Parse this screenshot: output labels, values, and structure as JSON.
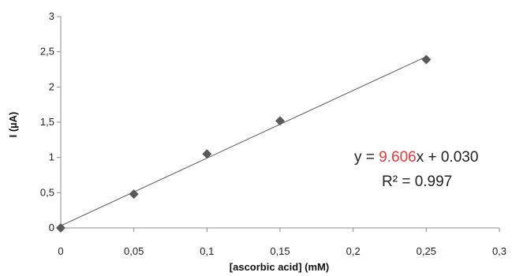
{
  "chart_data": {
    "type": "scatter",
    "xlabel": "[ascorbic acid] (mM)",
    "ylabel": "I (µA)",
    "xlim": [
      0,
      0.3
    ],
    "ylim": [
      0,
      3
    ],
    "x_ticks": [
      0,
      0.05,
      0.1,
      0.15,
      0.2,
      0.25,
      0.3
    ],
    "y_ticks": [
      0,
      0.5,
      1,
      1.5,
      2,
      2.5,
      3
    ],
    "x_tick_labels": [
      "0",
      "0,05",
      "0,1",
      "0,15",
      "0,2",
      "0,25",
      "0,3"
    ],
    "y_tick_labels": [
      "0",
      "0,5",
      "1",
      "1,5",
      "2",
      "2,5",
      "3"
    ],
    "grid": false,
    "series": [
      {
        "marker": "diamond",
        "color": "#595959",
        "x": [
          0,
          0.05,
          0.1,
          0.15,
          0.25
        ],
        "y": [
          0.0,
          0.48,
          1.05,
          1.52,
          2.39
        ]
      }
    ],
    "trendline": {
      "slope": 9.606,
      "intercept": 0.03,
      "x_range": [
        0,
        0.25
      ],
      "color": "#595959"
    },
    "annotation": {
      "eq_prefix": "y = ",
      "eq_slope": "9.606",
      "eq_suffix": "x + 0.030",
      "r2_label": "R² = 0.997",
      "slope_color": "#e8383d"
    }
  }
}
